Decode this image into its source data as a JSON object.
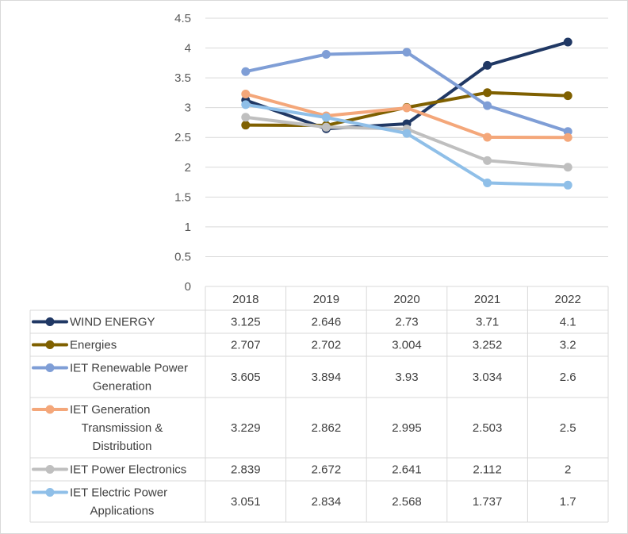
{
  "chart_data": {
    "type": "line",
    "title": "",
    "xlabel": "",
    "ylabel": "",
    "ylim": [
      0,
      4.5
    ],
    "yticks": [
      "0",
      "0.5",
      "1",
      "1.5",
      "2",
      "2.5",
      "3",
      "3.5",
      "4",
      "4.5"
    ],
    "grid": true,
    "legend": "data-table",
    "categories": [
      "2018",
      "2019",
      "2020",
      "2021",
      "2022"
    ],
    "series": [
      {
        "name": "WIND ENERGY",
        "label_lines": [
          "WIND ENERGY"
        ],
        "color": "#203864",
        "values": [
          3.125,
          2.646,
          2.73,
          3.71,
          4.1
        ],
        "display": [
          "3.125",
          "2.646",
          "2.73",
          "3.71",
          "4.1"
        ]
      },
      {
        "name": "Energies",
        "label_lines": [
          "Energies"
        ],
        "color": "#7f6000",
        "values": [
          2.707,
          2.702,
          3.004,
          3.252,
          3.2
        ],
        "display": [
          "2.707",
          "2.702",
          "3.004",
          "3.252",
          "3.2"
        ]
      },
      {
        "name": "IET Renewable Power Generation",
        "label_lines": [
          "IET Renewable Power",
          "Generation"
        ],
        "color": "#7f9ed6",
        "values": [
          3.605,
          3.894,
          3.93,
          3.034,
          2.6
        ],
        "display": [
          "3.605",
          "3.894",
          "3.93",
          "3.034",
          "2.6"
        ]
      },
      {
        "name": "IET Generation Transmission & Distribution",
        "label_lines": [
          "IET Generation",
          "Transmission &",
          "Distribution"
        ],
        "color": "#f4a77a",
        "values": [
          3.229,
          2.862,
          2.995,
          2.503,
          2.5
        ],
        "display": [
          "3.229",
          "2.862",
          "2.995",
          "2.503",
          "2.5"
        ]
      },
      {
        "name": "IET Power Electronics",
        "label_lines": [
          "IET Power Electronics"
        ],
        "color": "#bfbfbf",
        "values": [
          2.839,
          2.672,
          2.641,
          2.112,
          2
        ],
        "display": [
          "2.839",
          "2.672",
          "2.641",
          "2.112",
          "2"
        ]
      },
      {
        "name": "IET Electric Power Applications",
        "label_lines": [
          "IET Electric Power",
          "Applications"
        ],
        "color": "#8fbfe8",
        "values": [
          3.051,
          2.834,
          2.568,
          1.737,
          1.7
        ],
        "display": [
          "3.051",
          "2.834",
          "2.568",
          "1.737",
          "1.7"
        ]
      }
    ]
  }
}
